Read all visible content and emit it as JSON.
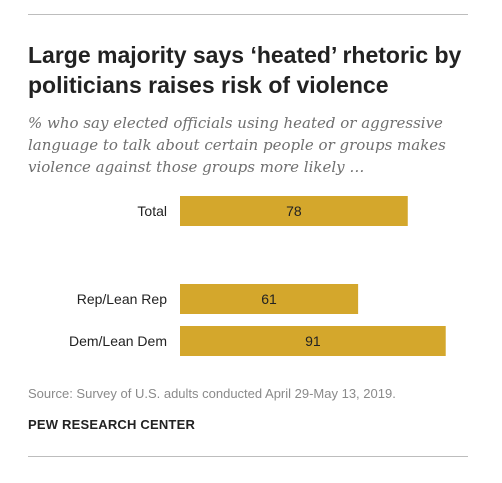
{
  "title": "Large majority says ‘heated’ rhetoric by politicians raises risk of violence",
  "subtitle": "% who say elected officials using heated or aggressive language to talk about certain people or groups makes violence against those groups more likely …",
  "source": "Source: Survey of U.S. adults conducted April 29-May 13, 2019.",
  "organization": "PEW RESEARCH CENTER",
  "colors": {
    "bar": "#d4a72c",
    "text": "#222222"
  },
  "chart_data": {
    "type": "bar",
    "orientation": "horizontal",
    "categories": [
      "Total",
      "Rep/Lean Rep",
      "Dem/Lean Dem"
    ],
    "values": [
      78,
      61,
      91
    ],
    "xlim": [
      0,
      100
    ],
    "grid": false,
    "legend": "none"
  }
}
